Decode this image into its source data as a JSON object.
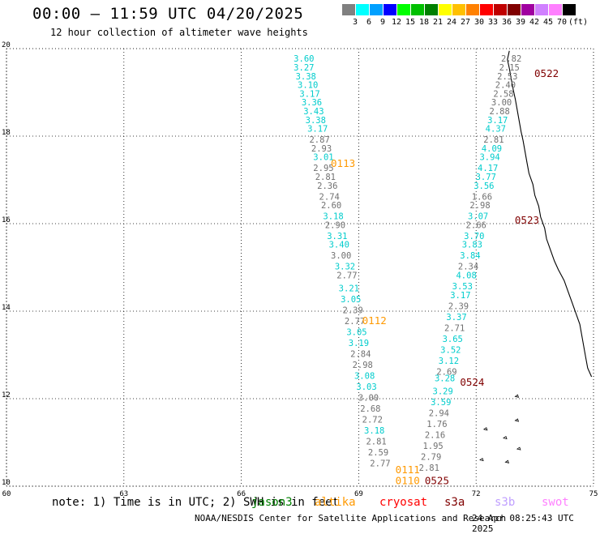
{
  "header": {
    "title": "00:00 – 11:59 UTC 04/20/2025",
    "subtitle": "12 hour collection of altimeter wave heights"
  },
  "legend": {
    "unit": "(ft)",
    "bins": [
      {
        "label": "3",
        "color": "#808080"
      },
      {
        "label": "6",
        "color": "#00ffff"
      },
      {
        "label": "9",
        "color": "#00a0ff"
      },
      {
        "label": "12",
        "color": "#0000ff"
      },
      {
        "label": "15",
        "color": "#00ff00"
      },
      {
        "label": "18",
        "color": "#00c000"
      },
      {
        "label": "21",
        "color": "#008000"
      },
      {
        "label": "24",
        "color": "#ffff00"
      },
      {
        "label": "27",
        "color": "#ffc000"
      },
      {
        "label": "30",
        "color": "#ff8000"
      },
      {
        "label": "33",
        "color": "#ff0000"
      },
      {
        "label": "36",
        "color": "#c00000"
      },
      {
        "label": "39",
        "color": "#800000"
      },
      {
        "label": "42",
        "color": "#a000a0"
      },
      {
        "label": "45",
        "color": "#d080ff"
      },
      {
        "label": "70",
        "color": "#ff80ff"
      },
      {
        "label": "",
        "color": "#000000"
      }
    ]
  },
  "map": {
    "lon_ticks": [
      "60",
      "63",
      "66",
      "69",
      "72",
      "75"
    ],
    "lat_ticks": [
      "10",
      "12",
      "14",
      "16",
      "18",
      "20"
    ],
    "lon_range": [
      60,
      75
    ],
    "lat_range": [
      10,
      20
    ]
  },
  "tracks": [
    {
      "pass": "0113",
      "time_color": "#ff9900",
      "time_lon": 68.6,
      "time_lat": 17.3,
      "values": [
        {
          "v": "3.60",
          "lon": 67.6,
          "lat": 19.7,
          "c": "#00cccc"
        },
        {
          "v": "3.27",
          "lon": 67.6,
          "lat": 19.5,
          "c": "#00cccc"
        },
        {
          "v": "3.38",
          "lon": 67.65,
          "lat": 19.3,
          "c": "#00cccc"
        },
        {
          "v": "3.10",
          "lon": 67.7,
          "lat": 19.1,
          "c": "#00cccc"
        },
        {
          "v": "3.17",
          "lon": 67.75,
          "lat": 18.9,
          "c": "#00cccc"
        },
        {
          "v": "3.36",
          "lon": 67.8,
          "lat": 18.7,
          "c": "#00cccc"
        },
        {
          "v": "3.43",
          "lon": 67.85,
          "lat": 18.5,
          "c": "#00cccc"
        },
        {
          "v": "3.38",
          "lon": 67.9,
          "lat": 18.3,
          "c": "#00cccc"
        },
        {
          "v": "3.17",
          "lon": 67.95,
          "lat": 18.1,
          "c": "#00cccc"
        },
        {
          "v": "2.87",
          "lon": 68.0,
          "lat": 17.85,
          "c": "#707070"
        },
        {
          "v": "2.93",
          "lon": 68.05,
          "lat": 17.65,
          "c": "#707070"
        },
        {
          "v": "3.01",
          "lon": 68.1,
          "lat": 17.45,
          "c": "#00cccc"
        },
        {
          "v": "2.95",
          "lon": 68.1,
          "lat": 17.2,
          "c": "#707070"
        },
        {
          "v": "2.81",
          "lon": 68.15,
          "lat": 17.0,
          "c": "#707070"
        },
        {
          "v": "2.36",
          "lon": 68.2,
          "lat": 16.8,
          "c": "#707070"
        },
        {
          "v": "2.74",
          "lon": 68.25,
          "lat": 16.55,
          "c": "#707070"
        },
        {
          "v": "2.60",
          "lon": 68.3,
          "lat": 16.35,
          "c": "#707070"
        },
        {
          "v": "3.18",
          "lon": 68.35,
          "lat": 16.1,
          "c": "#00cccc"
        },
        {
          "v": "2.90",
          "lon": 68.4,
          "lat": 15.9,
          "c": "#707070"
        },
        {
          "v": "3.31",
          "lon": 68.45,
          "lat": 15.65,
          "c": "#00cccc"
        },
        {
          "v": "3.40",
          "lon": 68.5,
          "lat": 15.45,
          "c": "#00cccc"
        },
        {
          "v": "3.00",
          "lon": 68.55,
          "lat": 15.2,
          "c": "#707070"
        },
        {
          "v": "3.32",
          "lon": 68.65,
          "lat": 14.95,
          "c": "#00cccc"
        },
        {
          "v": "2.77",
          "lon": 68.7,
          "lat": 14.75,
          "c": "#707070"
        }
      ]
    },
    {
      "pass": "0112",
      "time_color": "#ff9900",
      "time_lon": 69.4,
      "time_lat": 13.7,
      "values": [
        {
          "v": "3.21",
          "lon": 68.75,
          "lat": 14.45,
          "c": "#00cccc"
        },
        {
          "v": "3.05",
          "lon": 68.8,
          "lat": 14.2,
          "c": "#00cccc"
        },
        {
          "v": "2.39",
          "lon": 68.85,
          "lat": 13.95,
          "c": "#707070"
        },
        {
          "v": "2.77",
          "lon": 68.9,
          "lat": 13.7,
          "c": "#707070"
        },
        {
          "v": "3.05",
          "lon": 68.95,
          "lat": 13.45,
          "c": "#00cccc"
        },
        {
          "v": "3.19",
          "lon": 69.0,
          "lat": 13.2,
          "c": "#00cccc"
        },
        {
          "v": "2.84",
          "lon": 69.05,
          "lat": 12.95,
          "c": "#707070"
        },
        {
          "v": "2.98",
          "lon": 69.1,
          "lat": 12.7,
          "c": "#707070"
        },
        {
          "v": "3.08",
          "lon": 69.15,
          "lat": 12.45,
          "c": "#00cccc"
        },
        {
          "v": "3.03",
          "lon": 69.2,
          "lat": 12.2,
          "c": "#00cccc"
        },
        {
          "v": "3.00",
          "lon": 69.25,
          "lat": 11.95,
          "c": "#707070"
        },
        {
          "v": "2.68",
          "lon": 69.3,
          "lat": 11.7,
          "c": "#707070"
        },
        {
          "v": "2.72",
          "lon": 69.35,
          "lat": 11.45,
          "c": "#707070"
        },
        {
          "v": "3.18",
          "lon": 69.4,
          "lat": 11.2,
          "c": "#00cccc"
        },
        {
          "v": "2.81",
          "lon": 69.45,
          "lat": 10.95,
          "c": "#707070"
        },
        {
          "v": "2.59",
          "lon": 69.5,
          "lat": 10.7,
          "c": "#707070"
        },
        {
          "v": "2.77",
          "lon": 69.55,
          "lat": 10.45,
          "c": "#707070"
        }
      ]
    },
    {
      "pass": "0522",
      "time_color": "#800000",
      "time_lon": 73.8,
      "time_lat": 19.35,
      "values": [
        {
          "v": "2.82",
          "lon": 72.9,
          "lat": 19.7,
          "c": "#707070"
        },
        {
          "v": "2.15",
          "lon": 72.85,
          "lat": 19.5,
          "c": "#707070"
        },
        {
          "v": "2.53",
          "lon": 72.8,
          "lat": 19.3,
          "c": "#707070"
        },
        {
          "v": "2.40",
          "lon": 72.75,
          "lat": 19.1,
          "c": "#707070"
        },
        {
          "v": "2.58",
          "lon": 72.7,
          "lat": 18.9,
          "c": "#707070"
        },
        {
          "v": "3.00",
          "lon": 72.65,
          "lat": 18.7,
          "c": "#707070"
        },
        {
          "v": "2.88",
          "lon": 72.6,
          "lat": 18.5,
          "c": "#707070"
        },
        {
          "v": "3.17",
          "lon": 72.55,
          "lat": 18.3,
          "c": "#00cccc"
        },
        {
          "v": "4.37",
          "lon": 72.5,
          "lat": 18.1,
          "c": "#00cccc"
        },
        {
          "v": "2.81",
          "lon": 72.45,
          "lat": 17.85,
          "c": "#707070"
        },
        {
          "v": "4.09",
          "lon": 72.4,
          "lat": 17.65,
          "c": "#00cccc"
        },
        {
          "v": "3.94",
          "lon": 72.35,
          "lat": 17.45,
          "c": "#00cccc"
        },
        {
          "v": "4.17",
          "lon": 72.3,
          "lat": 17.2,
          "c": "#00cccc"
        },
        {
          "v": "3.77",
          "lon": 72.25,
          "lat": 17.0,
          "c": "#00cccc"
        },
        {
          "v": "3.56",
          "lon": 72.2,
          "lat": 16.8,
          "c": "#00cccc"
        },
        {
          "v": "1.66",
          "lon": 72.15,
          "lat": 16.55,
          "c": "#707070"
        },
        {
          "v": "2.98",
          "lon": 72.1,
          "lat": 16.35,
          "c": "#707070"
        }
      ]
    },
    {
      "pass": "0523",
      "time_color": "#800000",
      "time_lon": 73.3,
      "time_lat": 16.0,
      "values": [
        {
          "v": "3.07",
          "lon": 72.05,
          "lat": 16.1,
          "c": "#00cccc"
        },
        {
          "v": "2.66",
          "lon": 72.0,
          "lat": 15.9,
          "c": "#707070"
        },
        {
          "v": "3.70",
          "lon": 71.95,
          "lat": 15.65,
          "c": "#00cccc"
        },
        {
          "v": "3.83",
          "lon": 71.9,
          "lat": 15.45,
          "c": "#00cccc"
        },
        {
          "v": "3.84",
          "lon": 71.85,
          "lat": 15.2,
          "c": "#00cccc"
        },
        {
          "v": "2.34",
          "lon": 71.8,
          "lat": 14.95,
          "c": "#707070"
        },
        {
          "v": "4.08",
          "lon": 71.75,
          "lat": 14.75,
          "c": "#00cccc"
        },
        {
          "v": "3.53",
          "lon": 71.65,
          "lat": 14.5,
          "c": "#00cccc"
        },
        {
          "v": "3.17",
          "lon": 71.6,
          "lat": 14.3,
          "c": "#00cccc"
        },
        {
          "v": "2.39",
          "lon": 71.55,
          "lat": 14.05,
          "c": "#707070"
        },
        {
          "v": "3.37",
          "lon": 71.5,
          "lat": 13.8,
          "c": "#00cccc"
        },
        {
          "v": "2.71",
          "lon": 71.45,
          "lat": 13.55,
          "c": "#707070"
        },
        {
          "v": "3.65",
          "lon": 71.4,
          "lat": 13.3,
          "c": "#00cccc"
        },
        {
          "v": "3.52",
          "lon": 71.35,
          "lat": 13.05,
          "c": "#00cccc"
        },
        {
          "v": "3.12",
          "lon": 71.3,
          "lat": 12.8,
          "c": "#00cccc"
        }
      ]
    },
    {
      "pass": "0524",
      "time_color": "#800000",
      "time_lon": 71.9,
      "time_lat": 12.3,
      "values": [
        {
          "v": "2.69",
          "lon": 71.25,
          "lat": 12.55,
          "c": "#707070"
        },
        {
          "v": "3.28",
          "lon": 71.2,
          "lat": 12.4,
          "c": "#00cccc"
        },
        {
          "v": "3.29",
          "lon": 71.15,
          "lat": 12.1,
          "c": "#00cccc"
        },
        {
          "v": "3.59",
          "lon": 71.1,
          "lat": 11.85,
          "c": "#00cccc"
        },
        {
          "v": "2.94",
          "lon": 71.05,
          "lat": 11.6,
          "c": "#707070"
        },
        {
          "v": "1.76",
          "lon": 71.0,
          "lat": 11.35,
          "c": "#707070"
        },
        {
          "v": "2.16",
          "lon": 70.95,
          "lat": 11.1,
          "c": "#707070"
        },
        {
          "v": "1.95",
          "lon": 70.9,
          "lat": 10.85,
          "c": "#707070"
        },
        {
          "v": "2.79",
          "lon": 70.85,
          "lat": 10.6,
          "c": "#707070"
        },
        {
          "v": "2.81",
          "lon": 70.8,
          "lat": 10.35,
          "c": "#707070"
        }
      ]
    },
    {
      "pass": "0525",
      "time_color": "#800000",
      "time_lon": 71.0,
      "time_lat": 10.05,
      "values": []
    },
    {
      "pass": "0110",
      "time_color": "#ff9900",
      "time_lon": 70.25,
      "time_lat": 10.05,
      "values": []
    },
    {
      "pass": "0111",
      "time_color": "#ff9900",
      "time_lon": 70.25,
      "time_lat": 10.3,
      "values": []
    }
  ],
  "notes": {
    "text": "note: 1) Time is in UTC; 2) SWH is in feet",
    "satellites": [
      {
        "name": "jason3",
        "color": "#008000"
      },
      {
        "name": "altika",
        "color": "#ff9900"
      },
      {
        "name": "cryosat",
        "color": "#ff0000"
      },
      {
        "name": "s3a",
        "color": "#800000"
      },
      {
        "name": "s3b",
        "color": "#c0a0ff"
      },
      {
        "name": "swot",
        "color": "#ff80ff"
      }
    ]
  },
  "footer": {
    "credit": "NOAA/NESDIS Center for Satellite Applications and Research",
    "timestamp": "24 Apr 08:25:43 UTC 2025"
  }
}
